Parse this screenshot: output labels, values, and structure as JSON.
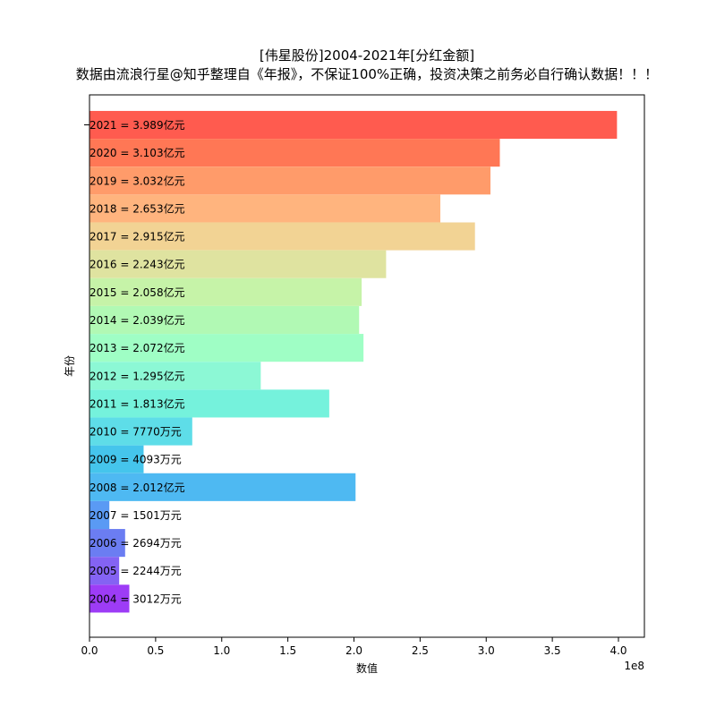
{
  "chart_data": {
    "type": "bar",
    "orientation": "horizontal",
    "title": "[伟星股份]2004-2021年[分红金额]",
    "subtitle": "数据由流浪行星@知乎整理自《年报》，不保证100%正确，投资决策之前务必自行确认数据！！！",
    "xlabel": "数值",
    "ylabel": "年份",
    "x_scale_label": "1e8",
    "xlim": [
      0,
      4.2
    ],
    "x_ticks": [
      0,
      0.5,
      1.0,
      1.5,
      2.0,
      2.5,
      3.0,
      3.5,
      4.0
    ],
    "x_tick_labels": [
      "0.0",
      "0.5",
      "1.0",
      "1.5",
      "2.0",
      "2.5",
      "3.0",
      "3.5",
      "4.0"
    ],
    "grid": false,
    "categories": [
      "2021",
      "2020",
      "2019",
      "2018",
      "2017",
      "2016",
      "2015",
      "2014",
      "2013",
      "2012",
      "2011",
      "2010",
      "2009",
      "2008",
      "2007",
      "2006",
      "2005",
      "2004"
    ],
    "values": [
      3.989,
      3.103,
      3.032,
      2.653,
      2.915,
      2.243,
      2.058,
      2.039,
      2.072,
      1.295,
      1.813,
      0.777,
      0.4093,
      2.012,
      0.1501,
      0.2694,
      0.2244,
      0.3012
    ],
    "labels": [
      "2021 = 3.989亿元",
      "2020 = 3.103亿元",
      "2019 = 3.032亿元",
      "2018 = 2.653亿元",
      "2017 = 2.915亿元",
      "2016 = 2.243亿元",
      "2015 = 2.058亿元",
      "2014 = 2.039亿元",
      "2013 = 2.072亿元",
      "2012 = 1.295亿元",
      "2011 = 1.813亿元",
      "2010 = 7770万元",
      "2009 = 4093万元",
      "2008 = 2.012亿元",
      "2007 = 1501万元",
      "2006 = 2694万元",
      "2005 = 2244万元",
      "2004 = 3012万元"
    ],
    "colors": [
      "#ff5b4f",
      "#ff7755",
      "#ff9b6a",
      "#ffb47e",
      "#f2d394",
      "#dfe3a0",
      "#c6f3a8",
      "#b1f9b4",
      "#9ffec5",
      "#8cf8d5",
      "#75f2dc",
      "#5edde8",
      "#45c5ec",
      "#4eb9f2",
      "#5a9af4",
      "#6b7df2",
      "#8463f3",
      "#9d3cf6"
    ]
  }
}
